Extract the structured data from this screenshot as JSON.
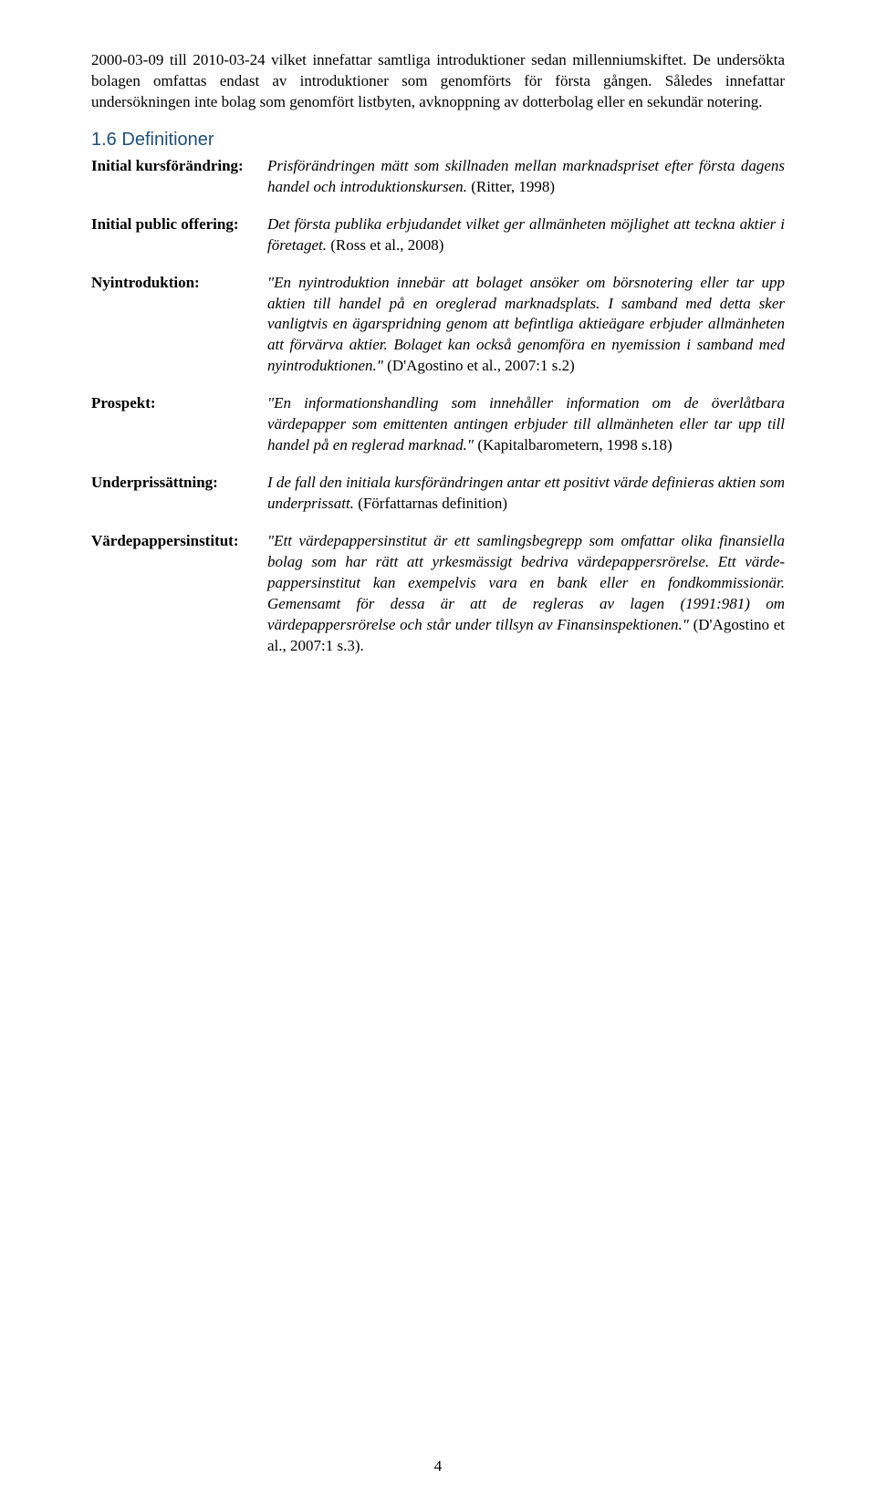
{
  "intro": {
    "para1": "2000-03-09 till 2010-03-24 vilket innefattar samtliga introduktioner sedan millenniumskiftet. De undersökta bolagen omfattas endast av introduktioner som genomförts för första gången. Således innefattar undersökningen inte bolag som genomfört listbyten, avknoppning av dotterbolag eller en sekundär notering."
  },
  "section": {
    "number": "1.6",
    "title": "Definitioner"
  },
  "defs": [
    {
      "term": "Initial kursförändring:",
      "body_italic": "Prisförändringen mätt som skillnaden mellan marknadspriset efter första dagens handel och intro­duktionskursen.",
      "body_roman": " (Ritter, 1998)"
    },
    {
      "term": "Initial public offering:",
      "body_italic": "Det första publika erbjudandet vilket ger allmänheten möjlighet att teckna aktier i företaget.",
      "body_roman": " (Ross et al., 2008)"
    },
    {
      "term": "Nyintroduktion:",
      "body_italic": "\"En nyintroduktion innebär att bolaget ansöker om börsnotering eller tar upp aktien till handel på en oreglerad marknadsplats. I samband med detta sker vanligtvis en ägarspridning genom att befintliga aktieägare erbjuder allmänheten att förvärva aktier. Bolaget kan också genomföra en nyemission i samband med nyintroduktionen.\"",
      "body_roman": " (D'Agostino et al., 2007:1 s.2)"
    },
    {
      "term": "Prospekt:",
      "body_italic": "\"En informationshandling som innehåller information om de överlåtbara värdepapper som emittenten antingen erbjuder till allmänheten eller tar upp till handel på en reglerad marknad.\"",
      "body_roman": " (Kapitalbarometern, 1998 s.18)"
    },
    {
      "term": "Underprissättning:",
      "body_italic": "I de fall den initiala kursförändringen antar ett positivt värde definieras aktien som underprissatt.",
      "body_roman": " (Författarnas definition)"
    },
    {
      "term": "Värdepappersinstitut:",
      "body_italic": "\"Ett värdepappersinstitut är ett samlingsbegrepp som omfattar olika finansiella bolag som har rätt att yrkesmässigt bedriva värdepappersrörelse. Ett värde­pappersinstitut kan exempelvis vara en bank eller en fondkommissionär. Gemensamt för dessa är att de regleras av lagen (1991:981) om värdepappersrörelse och står under tillsyn av Finansinspektionen.\"",
      "body_roman": " (D'Agostino et al., 2007:1 s.3)."
    }
  ],
  "page_number": "4"
}
